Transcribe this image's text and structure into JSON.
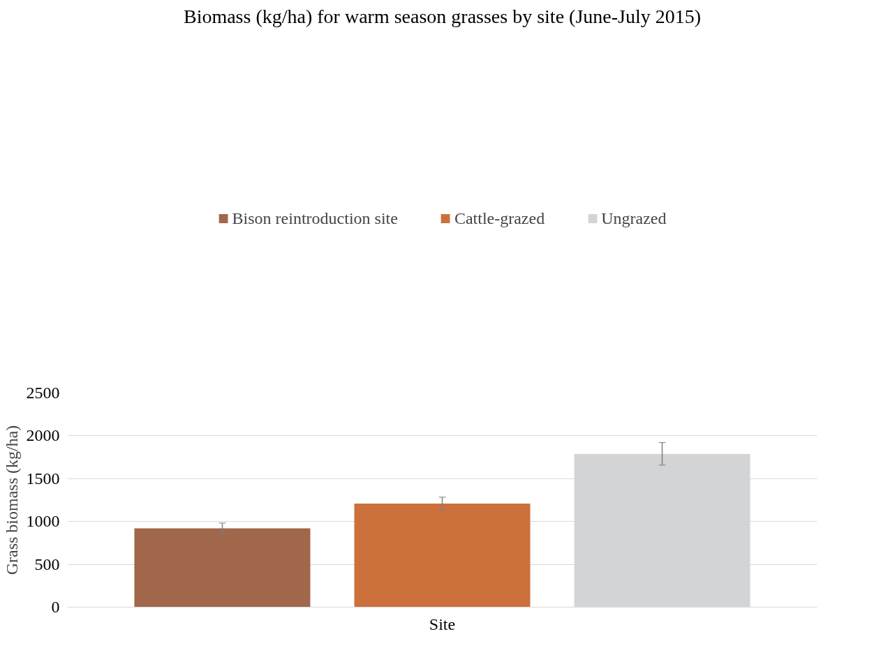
{
  "chart_data": {
    "type": "bar",
    "title": "Biomass (kg/ha) for warm season grasses by site (June-July 2015)",
    "ylabel": "Grass biomass (kg/ha)",
    "categories": [
      "Site"
    ],
    "series": [
      {
        "name": "Bison reintroduction site",
        "color": "#a0674a",
        "values": [
          920
        ],
        "errors": [
          62
        ]
      },
      {
        "name": "Cattle-grazed",
        "color": "#cc703c",
        "values": [
          1210
        ],
        "errors": [
          74
        ]
      },
      {
        "name": "Ungrazed",
        "color": "#d3d4d6",
        "values": [
          1790
        ],
        "errors": [
          132
        ]
      }
    ],
    "ylim": [
      0,
      2500
    ],
    "yticks": [
      0,
      500,
      1000,
      1500,
      2000,
      2500
    ],
    "grid": "y",
    "legend": "top"
  }
}
